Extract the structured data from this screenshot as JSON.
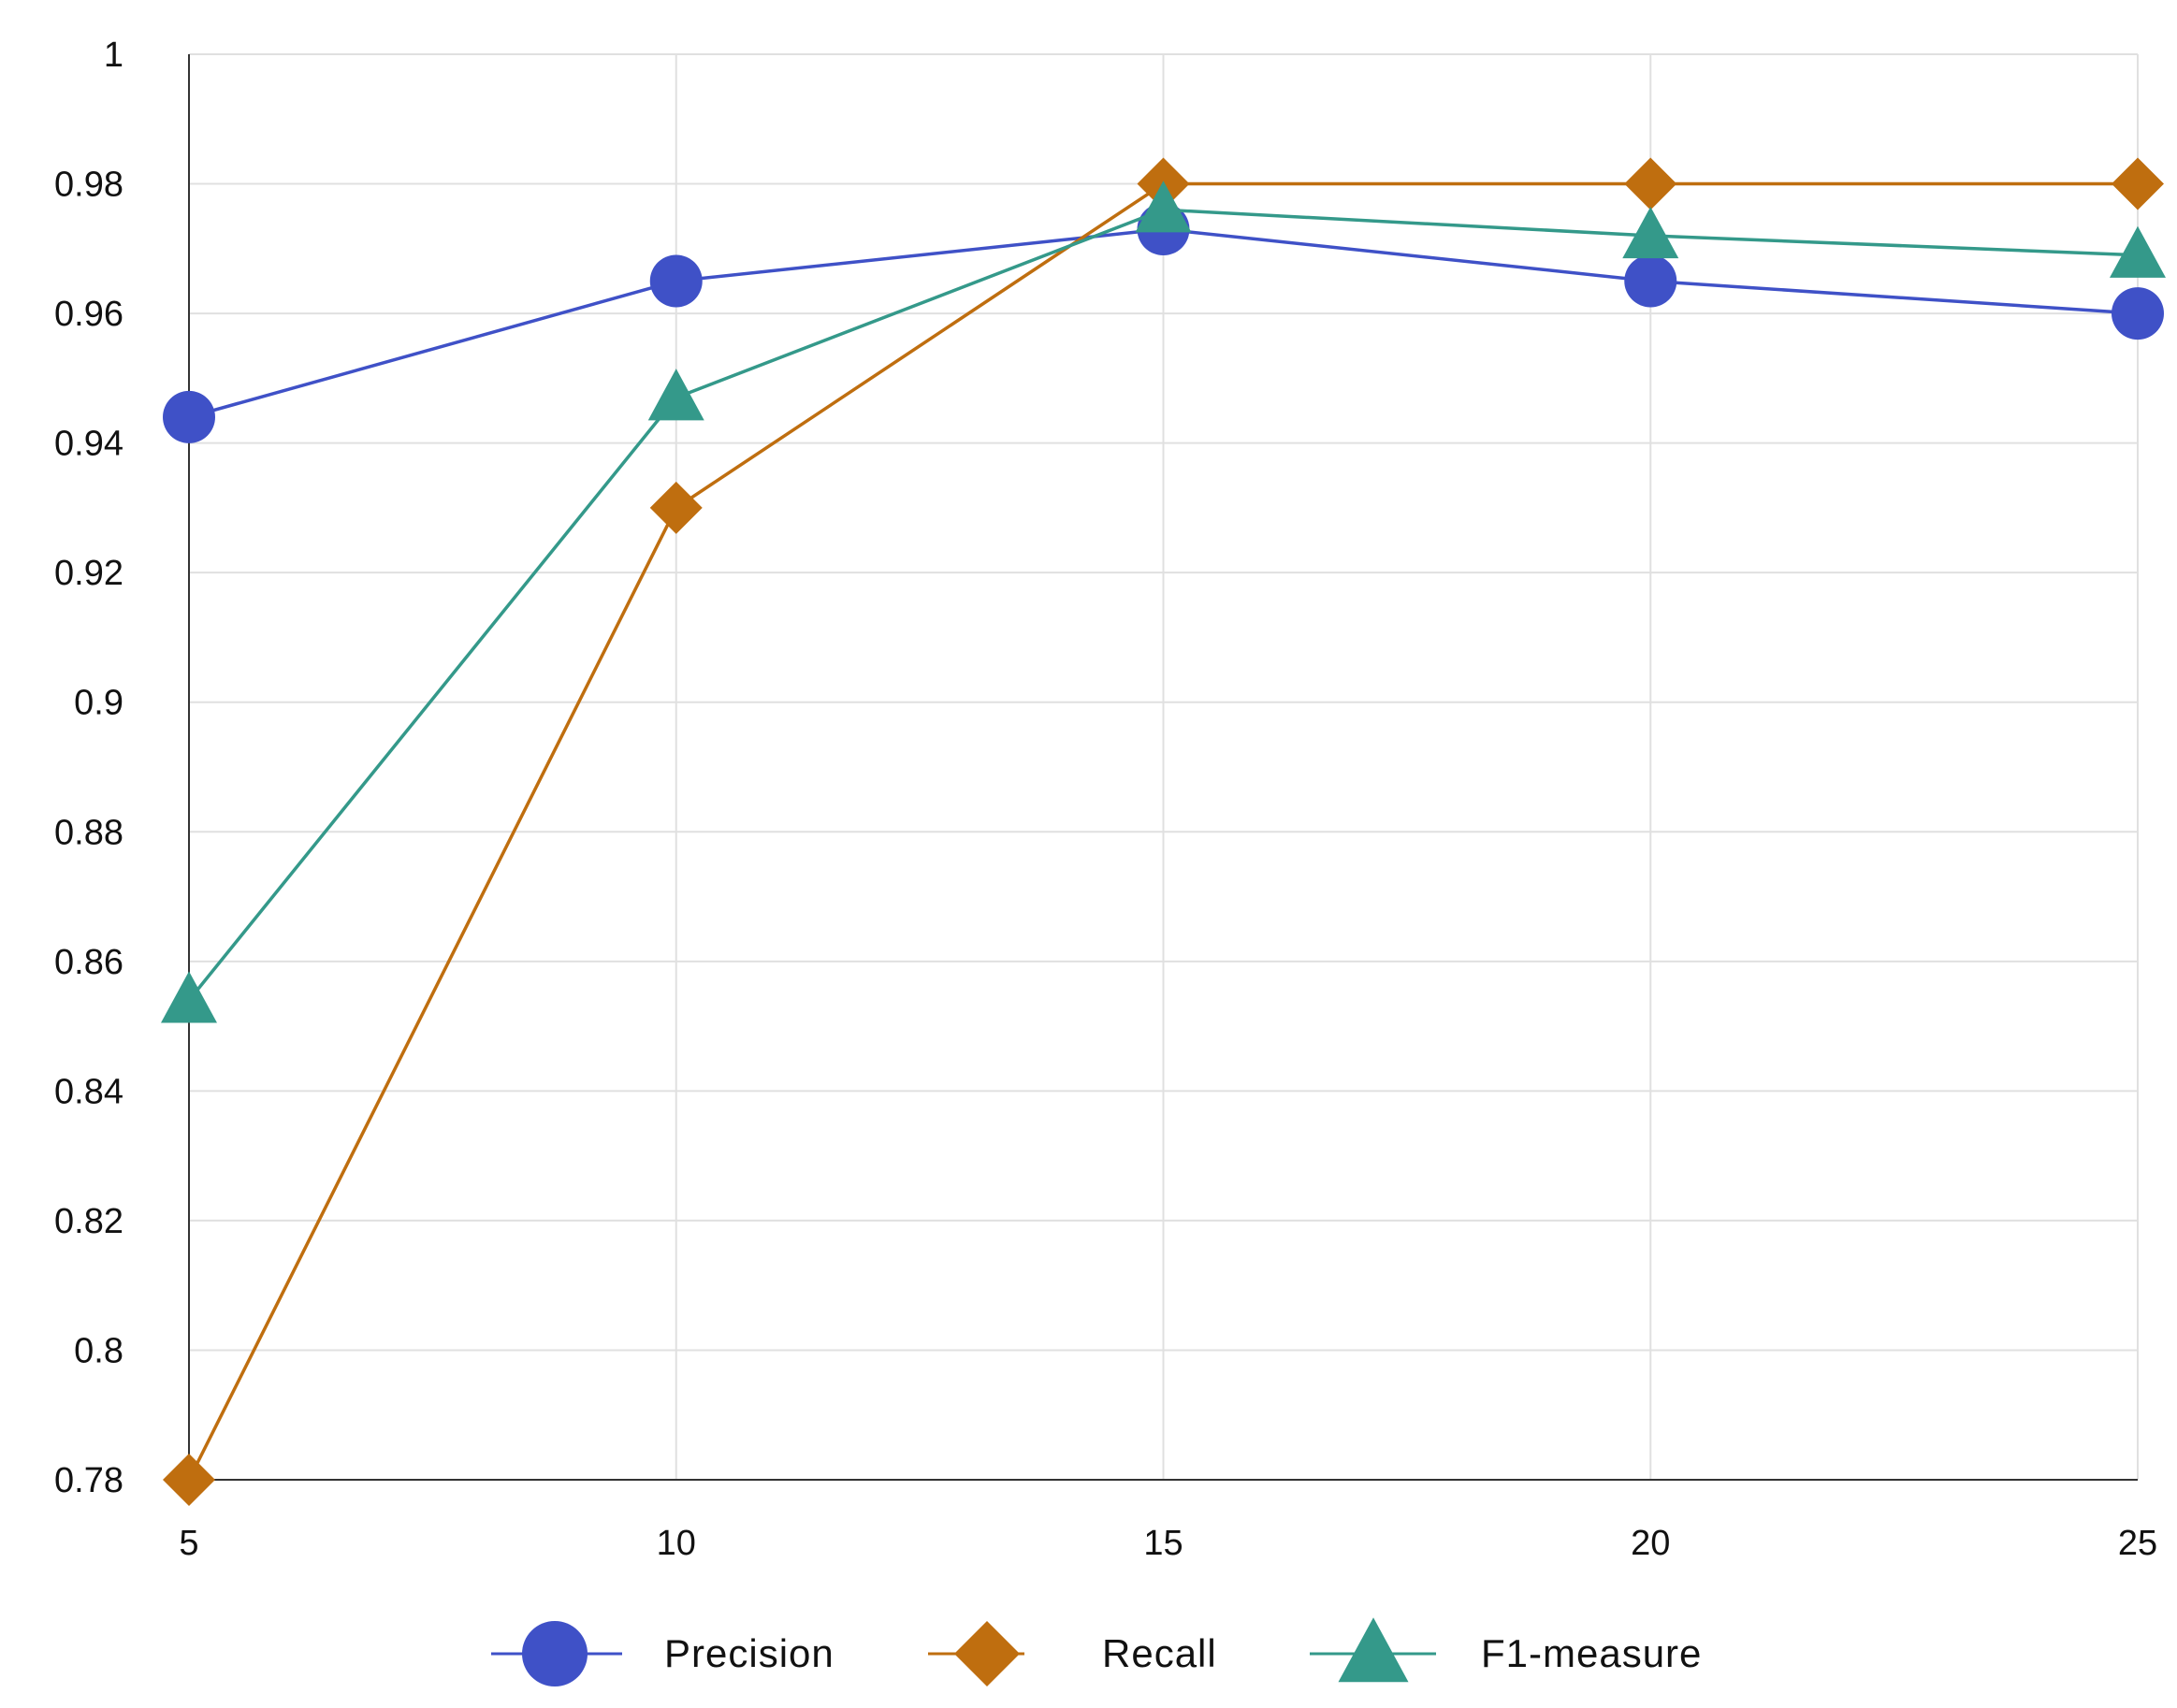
{
  "chart_data": {
    "type": "line",
    "title": "",
    "xlabel": "",
    "ylabel": "",
    "x": [
      5,
      10,
      15,
      20,
      25
    ],
    "xlim": [
      5,
      25
    ],
    "ylim": [
      0.78,
      1
    ],
    "x_ticks": [
      "5",
      "10",
      "15",
      "20",
      "25"
    ],
    "y_ticks": [
      "0.78",
      "0.8",
      "0.82",
      "0.84",
      "0.86",
      "0.88",
      "0.9",
      "0.92",
      "0.94",
      "0.96",
      "0.98",
      "1"
    ],
    "grid": true,
    "legend_position": "bottom-center",
    "series": [
      {
        "name": "Precision",
        "values": [
          0.944,
          0.965,
          0.973,
          0.965,
          0.96
        ],
        "color": "#3f51c7",
        "marker": "circle"
      },
      {
        "name": "Recall",
        "values": [
          0.78,
          0.93,
          0.98,
          0.98,
          0.98
        ],
        "color": "#bf6e0f",
        "marker": "diamond"
      },
      {
        "name": "F1-measure",
        "values": [
          0.854,
          0.947,
          0.976,
          0.972,
          0.969
        ],
        "color": "#34998a",
        "marker": "triangle"
      }
    ]
  }
}
